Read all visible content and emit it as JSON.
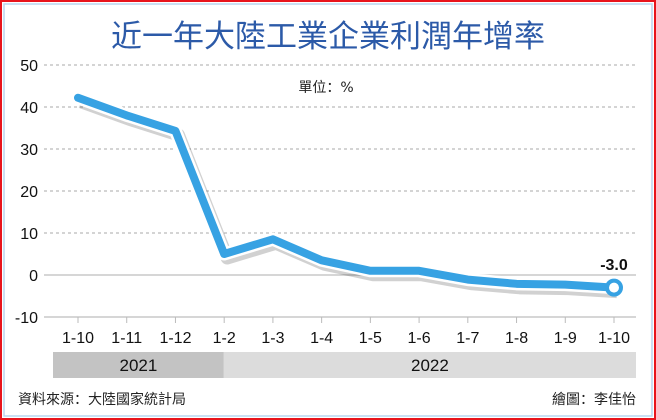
{
  "chart_data": {
    "type": "line",
    "title": "近一年大陸工業企業利潤年增率",
    "unit_label": "單位：%",
    "categories": [
      "1-10",
      "1-11",
      "1-12",
      "1-2",
      "1-3",
      "1-4",
      "1-5",
      "1-6",
      "1-7",
      "1-8",
      "1-9",
      "1-10"
    ],
    "years": [
      {
        "label": "2021",
        "from_index": 0,
        "to_index": 2
      },
      {
        "label": "2022",
        "from_index": 3,
        "to_index": 11
      }
    ],
    "series": [
      {
        "name": "工業企業利潤年增率",
        "values": [
          42.2,
          38.0,
          34.3,
          5.0,
          8.5,
          3.5,
          1.0,
          1.0,
          -1.1,
          -2.1,
          -2.3,
          -3.0
        ]
      }
    ],
    "ylim": [
      -10,
      50
    ],
    "yticks": [
      "-10",
      "0",
      "10",
      "20",
      "30",
      "40",
      "50"
    ],
    "grid": true,
    "data_label": "-3.0",
    "colors": {
      "line": "#37a2e3",
      "title": "#2c5aa8",
      "year2021": "#c3c3c3",
      "year2022": "#dcdcdc",
      "frame": "#e8141c"
    }
  },
  "footer": {
    "source": "資料來源：大陸國家統計局",
    "credit": "繪圖：李佳怡"
  }
}
